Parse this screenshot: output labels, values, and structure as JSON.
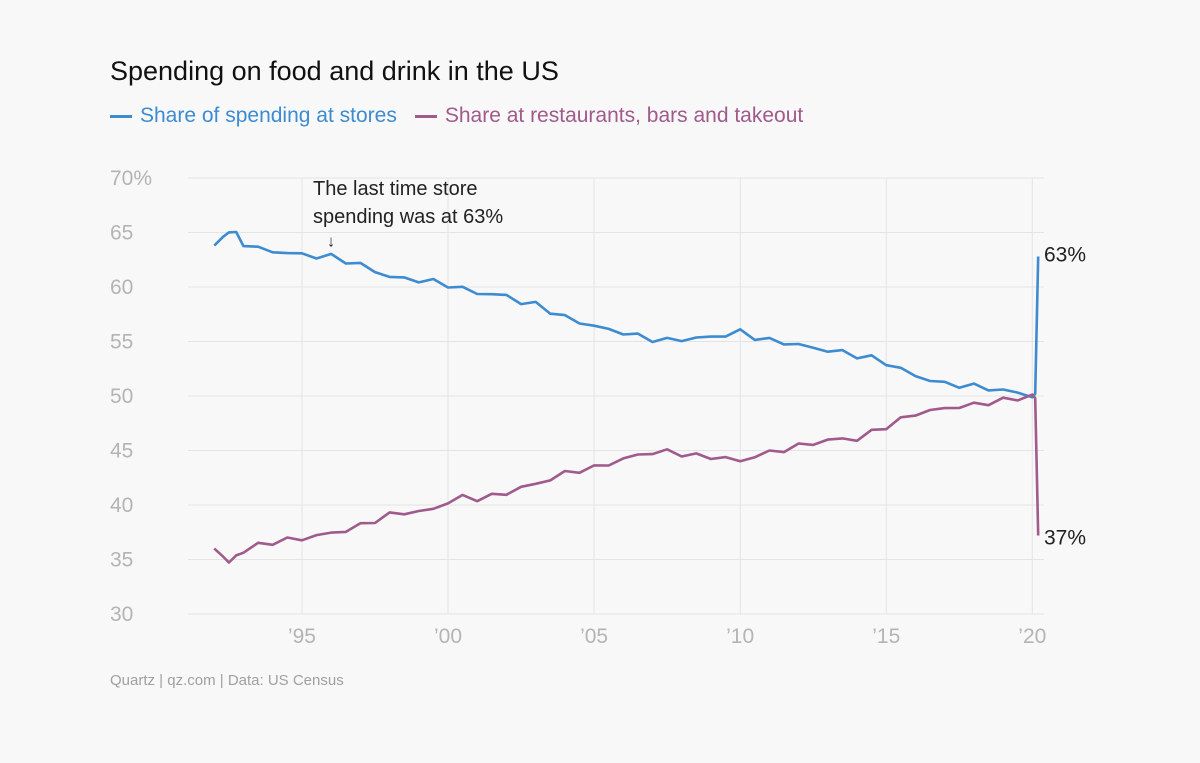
{
  "colors": {
    "stores": "#3d8bd0",
    "restaurants": "#a05a8c",
    "grid": "#e4e4e4"
  },
  "chart_data": {
    "type": "line",
    "title": "Spending on food and drink in the US",
    "xlabel": "",
    "ylabel": "",
    "xlim": [
      1992,
      2020.4
    ],
    "ylim": [
      30,
      70
    ],
    "grid": true,
    "legend_position": "top-left",
    "y_ticks": [
      {
        "value": 70,
        "label": "70%"
      },
      {
        "value": 65,
        "label": "65"
      },
      {
        "value": 60,
        "label": "60"
      },
      {
        "value": 55,
        "label": "55"
      },
      {
        "value": 50,
        "label": "50"
      },
      {
        "value": 45,
        "label": "45"
      },
      {
        "value": 40,
        "label": "40"
      },
      {
        "value": 35,
        "label": "35"
      },
      {
        "value": 30,
        "label": "30"
      }
    ],
    "x_ticks": [
      {
        "value": 1995,
        "label": "’95"
      },
      {
        "value": 2000,
        "label": "’00"
      },
      {
        "value": 2005,
        "label": "’05"
      },
      {
        "value": 2010,
        "label": "’10"
      },
      {
        "value": 2015,
        "label": "’15"
      },
      {
        "value": 2020,
        "label": "’20"
      }
    ],
    "series": [
      {
        "name": "Share of spending at stores",
        "color_key": "stores",
        "x": [
          1992.0,
          1992.3,
          1992.5,
          1992.75,
          1993.0,
          1993.5,
          1994.0,
          1994.5,
          1995.0,
          1995.5,
          1996.0,
          1996.5,
          1997.0,
          1997.5,
          1998.0,
          1998.5,
          1999.0,
          1999.5,
          2000.0,
          2000.5,
          2001.0,
          2001.5,
          2002.0,
          2002.5,
          2003.0,
          2003.5,
          2004.0,
          2004.5,
          2005.0,
          2005.5,
          2006.0,
          2006.5,
          2007.0,
          2007.5,
          2008.0,
          2008.5,
          2009.0,
          2009.5,
          2010.0,
          2010.5,
          2011.0,
          2011.5,
          2012.0,
          2012.5,
          2013.0,
          2013.5,
          2014.0,
          2014.5,
          2015.0,
          2015.5,
          2016.0,
          2016.5,
          2017.0,
          2017.5,
          2018.0,
          2018.5,
          2019.0,
          2019.5,
          2020.0,
          2020.1,
          2020.2
        ],
        "values": [
          63.8,
          64.5,
          65.2,
          64.8,
          64.0,
          63.5,
          63.3,
          63.1,
          63.0,
          62.8,
          62.8,
          62.4,
          62.0,
          61.5,
          60.9,
          60.8,
          60.6,
          60.5,
          60.2,
          59.8,
          59.5,
          59.3,
          59.2,
          58.6,
          58.4,
          57.8,
          57.2,
          56.8,
          56.4,
          56.1,
          55.8,
          55.5,
          55.2,
          55.1,
          55.2,
          55.3,
          55.4,
          55.6,
          55.9,
          55.4,
          55.1,
          54.9,
          54.7,
          54.4,
          54.2,
          54.0,
          53.7,
          53.5,
          53.0,
          52.5,
          51.8,
          51.5,
          51.1,
          51.0,
          50.9,
          50.7,
          50.5,
          50.3,
          50.0,
          50.2,
          62.8
        ]
      },
      {
        "name": "Share at restaurants, bars and takeout",
        "color_key": "restaurants",
        "x": [
          1992.0,
          1992.3,
          1992.5,
          1992.75,
          1993.0,
          1993.5,
          1994.0,
          1994.5,
          1995.0,
          1995.5,
          1996.0,
          1996.5,
          1997.0,
          1997.5,
          1998.0,
          1998.5,
          1999.0,
          1999.5,
          2000.0,
          2000.5,
          2001.0,
          2001.5,
          2002.0,
          2002.5,
          2003.0,
          2003.5,
          2004.0,
          2004.5,
          2005.0,
          2005.5,
          2006.0,
          2006.5,
          2007.0,
          2007.5,
          2008.0,
          2008.5,
          2009.0,
          2009.5,
          2010.0,
          2010.5,
          2011.0,
          2011.5,
          2012.0,
          2012.5,
          2013.0,
          2013.5,
          2014.0,
          2014.5,
          2015.0,
          2015.5,
          2016.0,
          2016.5,
          2017.0,
          2017.5,
          2018.0,
          2018.5,
          2019.0,
          2019.5,
          2020.0,
          2020.1,
          2020.2
        ],
        "values": [
          36.0,
          35.4,
          34.7,
          35.3,
          35.8,
          36.3,
          36.6,
          36.8,
          36.9,
          37.2,
          37.4,
          37.7,
          38.1,
          38.6,
          39.1,
          39.3,
          39.4,
          39.6,
          40.3,
          40.7,
          40.6,
          40.8,
          41.1,
          41.6,
          41.9,
          42.4,
          42.9,
          43.2,
          43.4,
          43.8,
          44.2,
          44.6,
          44.8,
          44.9,
          44.7,
          44.5,
          44.4,
          44.3,
          44.0,
          44.5,
          44.8,
          45.1,
          45.4,
          45.7,
          45.9,
          46.1,
          46.0,
          46.7,
          47.2,
          47.8,
          48.4,
          48.6,
          48.9,
          49.0,
          49.2,
          49.4,
          49.6,
          49.8,
          50.0,
          49.8,
          37.2
        ]
      }
    ],
    "annotation": {
      "line1": "The last time store",
      "line2": "spending was at 63%",
      "arrow": "↓",
      "x": 1996.0,
      "y": 63.0
    },
    "end_labels": [
      {
        "series": 0,
        "label": "63%",
        "value": 63
      },
      {
        "series": 1,
        "label": "37%",
        "value": 37
      }
    ]
  },
  "source": "Quartz | qz.com | Data: US Census"
}
